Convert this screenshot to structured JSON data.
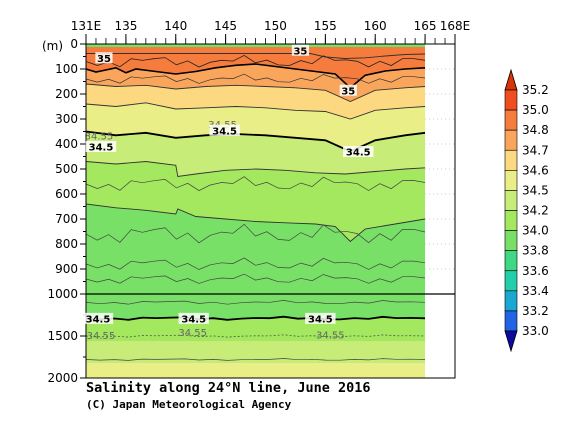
{
  "chart_data": {
    "type": "heatmap",
    "title": "Salinity along 24°N line, June 2016",
    "credit": "(C) Japan Meteorological Agency",
    "y_unit_label": "(m)",
    "x_ticks": [
      "131E",
      "135",
      "140",
      "145",
      "150",
      "155",
      "160",
      "165",
      "168E"
    ],
    "x_tick_values": [
      131,
      135,
      140,
      145,
      150,
      155,
      160,
      165,
      168
    ],
    "xlim": [
      131,
      168
    ],
    "data_xlim": [
      131,
      165
    ],
    "y_upper_ticks": [
      "0",
      "100",
      "200",
      "300",
      "400",
      "500",
      "600",
      "700",
      "800",
      "900",
      "1000"
    ],
    "y_upper_values": [
      0,
      100,
      200,
      300,
      400,
      500,
      600,
      700,
      800,
      900,
      1000
    ],
    "y_lower_ticks": [
      "1500",
      "2000"
    ],
    "y_lower_values": [
      1500,
      2000
    ],
    "ylim": [
      0,
      2000
    ],
    "colorbar": {
      "labels": [
        "35.2",
        "35.0",
        "34.8",
        "34.7",
        "34.6",
        "34.5",
        "34.2",
        "34.0",
        "33.8",
        "33.6",
        "33.4",
        "33.2",
        "33.0"
      ],
      "colors": [
        "#f04e1e",
        "#f57c3c",
        "#f9a65c",
        "#fcd980",
        "#e9ee87",
        "#c8ec78",
        "#a3e85e",
        "#79e067",
        "#3fd985",
        "#22cfaa",
        "#1aa7d1",
        "#2164e6",
        "#1620c8"
      ],
      "top_color": "#d93309",
      "bottom_color": "#0c0a9f"
    },
    "contour_labels": [
      {
        "text": "35",
        "lon": 132.8,
        "depth": 65,
        "style": "bold"
      },
      {
        "text": "35",
        "lon": 152.5,
        "depth": 35,
        "style": "bold"
      },
      {
        "text": "35",
        "lon": 157.3,
        "depth": 195,
        "style": "bold"
      },
      {
        "text": "34.55",
        "lon": 132.3,
        "depth": 375,
        "style": "thin"
      },
      {
        "text": "34.5",
        "lon": 132.5,
        "depth": 420,
        "style": "bold"
      },
      {
        "text": "34.55",
        "lon": 144.7,
        "depth": 330,
        "style": "thin"
      },
      {
        "text": "34.5",
        "lon": 144.9,
        "depth": 355,
        "style": "bold"
      },
      {
        "text": "34.5",
        "lon": 158.3,
        "depth": 440,
        "style": "bold"
      },
      {
        "text": "34.5",
        "lon": 132.2,
        "depth": 1320,
        "style": "bold"
      },
      {
        "text": "34.5",
        "lon": 141.8,
        "depth": 1320,
        "style": "bold"
      },
      {
        "text": "34.5",
        "lon": 154.5,
        "depth": 1320,
        "style": "bold"
      },
      {
        "text": "34.55",
        "lon": 132.5,
        "depth": 1520,
        "style": "thin"
      },
      {
        "text": "34.55",
        "lon": 141.7,
        "depth": 1480,
        "style": "thin"
      },
      {
        "text": "34.55",
        "lon": 155.5,
        "depth": 1510,
        "style": "thin"
      }
    ],
    "layers": [
      {
        "value": "35.2",
        "top": [
          [
            131,
            38
          ],
          [
            165,
            38
          ]
        ],
        "bottom": [
          [
            131,
            38
          ],
          [
            153.5,
            38
          ],
          [
            155,
            52
          ],
          [
            157,
            58
          ],
          [
            159,
            55
          ],
          [
            161,
            48
          ],
          [
            163,
            42
          ],
          [
            165,
            40
          ]
        ]
      },
      {
        "value": "35.0",
        "top": [
          [
            131,
            12
          ],
          [
            165,
            12
          ]
        ],
        "bottom": [
          [
            131,
            100
          ],
          [
            132,
            112
          ],
          [
            134,
            95
          ],
          [
            135,
            115
          ],
          [
            136,
            100
          ],
          [
            138,
            110
          ],
          [
            140,
            120
          ],
          [
            142,
            110
          ],
          [
            144,
            95
          ],
          [
            146,
            85
          ],
          [
            148,
            80
          ],
          [
            150,
            90
          ],
          [
            152,
            100
          ],
          [
            154,
            110
          ],
          [
            156,
            120
          ],
          [
            157.5,
            175
          ],
          [
            159,
            125
          ],
          [
            161,
            108
          ],
          [
            163,
            100
          ],
          [
            165,
            95
          ]
        ]
      },
      {
        "value": "34.8",
        "top": [
          [
            131,
            100
          ],
          [
            132,
            112
          ],
          [
            134,
            95
          ],
          [
            135,
            115
          ],
          [
            136,
            100
          ],
          [
            138,
            110
          ],
          [
            140,
            120
          ],
          [
            142,
            110
          ],
          [
            144,
            95
          ],
          [
            146,
            85
          ],
          [
            148,
            80
          ],
          [
            150,
            90
          ],
          [
            152,
            100
          ],
          [
            154,
            110
          ],
          [
            156,
            120
          ],
          [
            157.5,
            175
          ],
          [
            159,
            125
          ],
          [
            161,
            108
          ],
          [
            163,
            100
          ],
          [
            165,
            95
          ]
        ],
        "bottom": [
          [
            131,
            160
          ],
          [
            134,
            170
          ],
          [
            137,
            165
          ],
          [
            140,
            180
          ],
          [
            143,
            170
          ],
          [
            146,
            165
          ],
          [
            149,
            170
          ],
          [
            152,
            175
          ],
          [
            155,
            185
          ],
          [
            157.5,
            230
          ],
          [
            160,
            185
          ],
          [
            163,
            175
          ],
          [
            165,
            170
          ]
        ]
      },
      {
        "value": "34.7",
        "top": [
          [
            131,
            160
          ],
          [
            134,
            170
          ],
          [
            137,
            165
          ],
          [
            140,
            180
          ],
          [
            143,
            170
          ],
          [
            146,
            165
          ],
          [
            149,
            170
          ],
          [
            152,
            175
          ],
          [
            155,
            185
          ],
          [
            157.5,
            230
          ],
          [
            160,
            185
          ],
          [
            163,
            175
          ],
          [
            165,
            170
          ]
        ],
        "bottom": [
          [
            131,
            240
          ],
          [
            134,
            250
          ],
          [
            137,
            235
          ],
          [
            140,
            260
          ],
          [
            143,
            255
          ],
          [
            146,
            250
          ],
          [
            149,
            255
          ],
          [
            152,
            265
          ],
          [
            155,
            270
          ],
          [
            157.5,
            300
          ],
          [
            160,
            265
          ],
          [
            163,
            255
          ],
          [
            165,
            250
          ]
        ]
      },
      {
        "value": "34.6",
        "top": [
          [
            131,
            240
          ],
          [
            134,
            250
          ],
          [
            137,
            235
          ],
          [
            140,
            260
          ],
          [
            143,
            255
          ],
          [
            146,
            250
          ],
          [
            149,
            255
          ],
          [
            152,
            265
          ],
          [
            155,
            270
          ],
          [
            157.5,
            300
          ],
          [
            160,
            265
          ],
          [
            163,
            255
          ],
          [
            165,
            250
          ]
        ],
        "bottom": [
          [
            131,
            350
          ],
          [
            134,
            365
          ],
          [
            137,
            355
          ],
          [
            140,
            375
          ],
          [
            143,
            365
          ],
          [
            146,
            360
          ],
          [
            149,
            365
          ],
          [
            152,
            375
          ],
          [
            155,
            385
          ],
          [
            157.5,
            430
          ],
          [
            160,
            385
          ],
          [
            163,
            365
          ],
          [
            165,
            355
          ]
        ]
      },
      {
        "value": "34.5",
        "top": [
          [
            131,
            350
          ],
          [
            134,
            365
          ],
          [
            137,
            355
          ],
          [
            140,
            375
          ],
          [
            143,
            365
          ],
          [
            146,
            360
          ],
          [
            149,
            365
          ],
          [
            152,
            375
          ],
          [
            155,
            385
          ],
          [
            157.5,
            430
          ],
          [
            160,
            385
          ],
          [
            163,
            365
          ],
          [
            165,
            355
          ]
        ],
        "bottom": [
          [
            131,
            470
          ],
          [
            134,
            480
          ],
          [
            137,
            470
          ],
          [
            140,
            485
          ],
          [
            140.2,
            530
          ],
          [
            142,
            520
          ],
          [
            145,
            505
          ],
          [
            148,
            500
          ],
          [
            151,
            505
          ],
          [
            154,
            515
          ],
          [
            157,
            520
          ],
          [
            160,
            510
          ],
          [
            163,
            500
          ],
          [
            165,
            495
          ]
        ]
      },
      {
        "value": "34.2",
        "top": [
          [
            131,
            470
          ],
          [
            134,
            480
          ],
          [
            137,
            470
          ],
          [
            140,
            485
          ],
          [
            140.2,
            530
          ],
          [
            142,
            520
          ],
          [
            145,
            505
          ],
          [
            148,
            500
          ],
          [
            151,
            505
          ],
          [
            154,
            515
          ],
          [
            157,
            520
          ],
          [
            160,
            510
          ],
          [
            163,
            500
          ],
          [
            165,
            495
          ]
        ],
        "bottom": [
          [
            131,
            640
          ],
          [
            134,
            655
          ],
          [
            137,
            665
          ],
          [
            140,
            680
          ],
          [
            140.2,
            660
          ],
          [
            142,
            690
          ],
          [
            145,
            700
          ],
          [
            148,
            710
          ],
          [
            151,
            715
          ],
          [
            154,
            720
          ],
          [
            156,
            730
          ],
          [
            157.5,
            790
          ],
          [
            159,
            740
          ],
          [
            162,
            720
          ],
          [
            165,
            700
          ]
        ]
      },
      {
        "value": "34.0",
        "top": [
          [
            131,
            640
          ],
          [
            134,
            655
          ],
          [
            137,
            665
          ],
          [
            140,
            680
          ],
          [
            140.2,
            660
          ],
          [
            142,
            690
          ],
          [
            145,
            700
          ],
          [
            148,
            710
          ],
          [
            151,
            715
          ],
          [
            154,
            720
          ],
          [
            156,
            730
          ],
          [
            157.5,
            790
          ],
          [
            159,
            740
          ],
          [
            162,
            720
          ],
          [
            165,
            700
          ]
        ],
        "bottom": [
          [
            131,
            1000
          ],
          [
            165,
            1000
          ]
        ]
      }
    ]
  }
}
